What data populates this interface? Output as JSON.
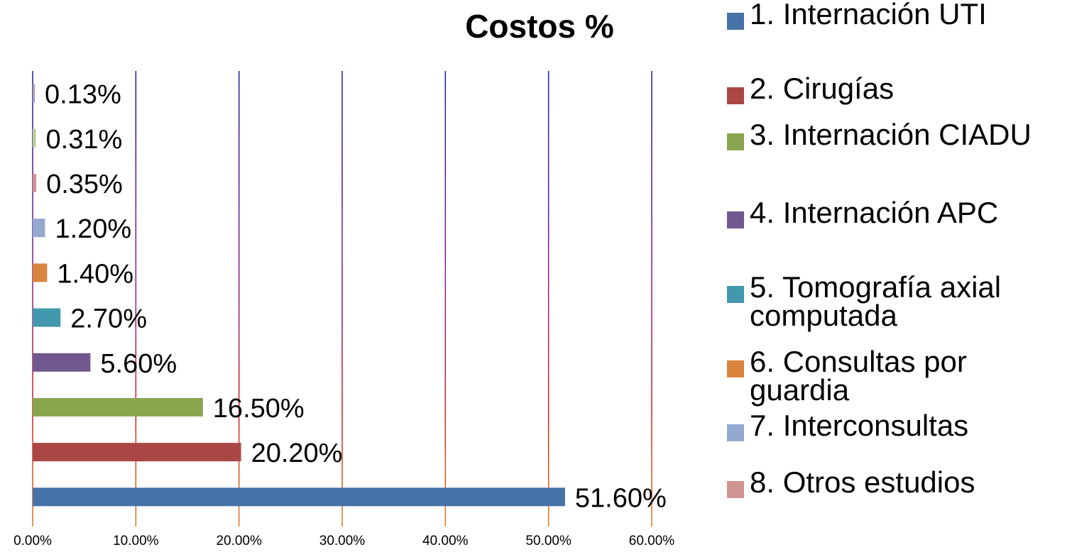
{
  "chart_data": {
    "type": "bar",
    "orientation": "horizontal",
    "title": "Costos %",
    "xlim": [
      0,
      60
    ],
    "xticks": [
      "0.00%",
      "10.00%",
      "20.00%",
      "30.00%",
      "40.00%",
      "50.00%",
      "60.00%"
    ],
    "grid": true,
    "legend_position": "right",
    "categories": [
      "1. Internación UTI",
      "2. Cirugías",
      "3. Internación CIADU",
      "4. Internación APC",
      "5. Tomografía axial computada",
      "6. Consultas por guardia",
      "7. Interconsultas",
      "8. Otros estudios",
      "",
      ""
    ],
    "values": [
      51.6,
      20.2,
      16.5,
      5.6,
      2.7,
      1.4,
      1.2,
      0.35,
      0.31,
      0.13
    ],
    "data_labels": [
      "51.60%",
      "20.20%",
      "16.50%",
      "5.60%",
      "2.70%",
      "1.40%",
      "1.20%",
      "0.35%",
      "0.31%",
      "0.13%"
    ],
    "colors": [
      "#4572A7",
      "#AA4643",
      "#89A54E",
      "#71588F",
      "#4198AF",
      "#DB843D",
      "#93A9CF",
      "#D19392",
      "#B9CD96",
      "#A99BBD"
    ],
    "legend": [
      "1. Internación UTI",
      "2. Cirugías",
      "3. Internación CIADU",
      "4. Internación APC",
      "5. Tomografía axial computada",
      "6. Consultas por guardia",
      "7. Interconsultas",
      "8. Otros estudios"
    ]
  }
}
